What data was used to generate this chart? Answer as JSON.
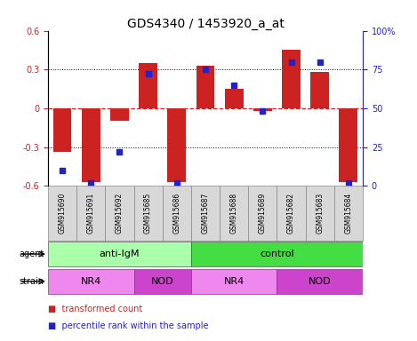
{
  "title": "GDS4340 / 1453920_a_at",
  "samples": [
    "GSM915690",
    "GSM915691",
    "GSM915692",
    "GSM915685",
    "GSM915686",
    "GSM915687",
    "GSM915688",
    "GSM915689",
    "GSM915682",
    "GSM915683",
    "GSM915684"
  ],
  "bar_values": [
    -0.34,
    -0.57,
    -0.1,
    0.35,
    -0.57,
    0.33,
    0.15,
    -0.02,
    0.45,
    0.28,
    -0.57
  ],
  "percentile_values": [
    10,
    2,
    22,
    72,
    2,
    75,
    65,
    48,
    80,
    80,
    2
  ],
  "bar_color": "#cc2222",
  "dot_color": "#2222cc",
  "ylim": [
    -0.6,
    0.6
  ],
  "yticks": [
    -0.6,
    -0.3,
    0.0,
    0.3,
    0.6
  ],
  "ytick_labels": [
    "-0.6",
    "-0.3",
    "0",
    "0.3",
    "0.6"
  ],
  "right_yticks": [
    0,
    25,
    50,
    75,
    100
  ],
  "right_yticklabels": [
    "0",
    "25",
    "50",
    "75",
    "100%"
  ],
  "zero_line_color": "#cc2222",
  "grid_color": "black",
  "agent_groups": [
    {
      "label": "anti-IgM",
      "start": 0,
      "end": 5,
      "color": "#aaffaa"
    },
    {
      "label": "control",
      "start": 5,
      "end": 11,
      "color": "#44dd44"
    }
  ],
  "strain_groups": [
    {
      "label": "NR4",
      "start": 0,
      "end": 3,
      "color": "#ee88ee"
    },
    {
      "label": "NOD",
      "start": 3,
      "end": 5,
      "color": "#cc44cc"
    },
    {
      "label": "NR4",
      "start": 5,
      "end": 8,
      "color": "#ee88ee"
    },
    {
      "label": "NOD",
      "start": 8,
      "end": 11,
      "color": "#cc44cc"
    }
  ],
  "legend_items": [
    {
      "label": "transformed count",
      "color": "#cc2222"
    },
    {
      "label": "percentile rank within the sample",
      "color": "#2222cc"
    }
  ],
  "title_fontsize": 10,
  "tick_label_fontsize": 7,
  "bar_width": 0.65,
  "sample_label_fontsize": 5.5,
  "group_label_fontsize": 8,
  "row_label_fontsize": 7
}
